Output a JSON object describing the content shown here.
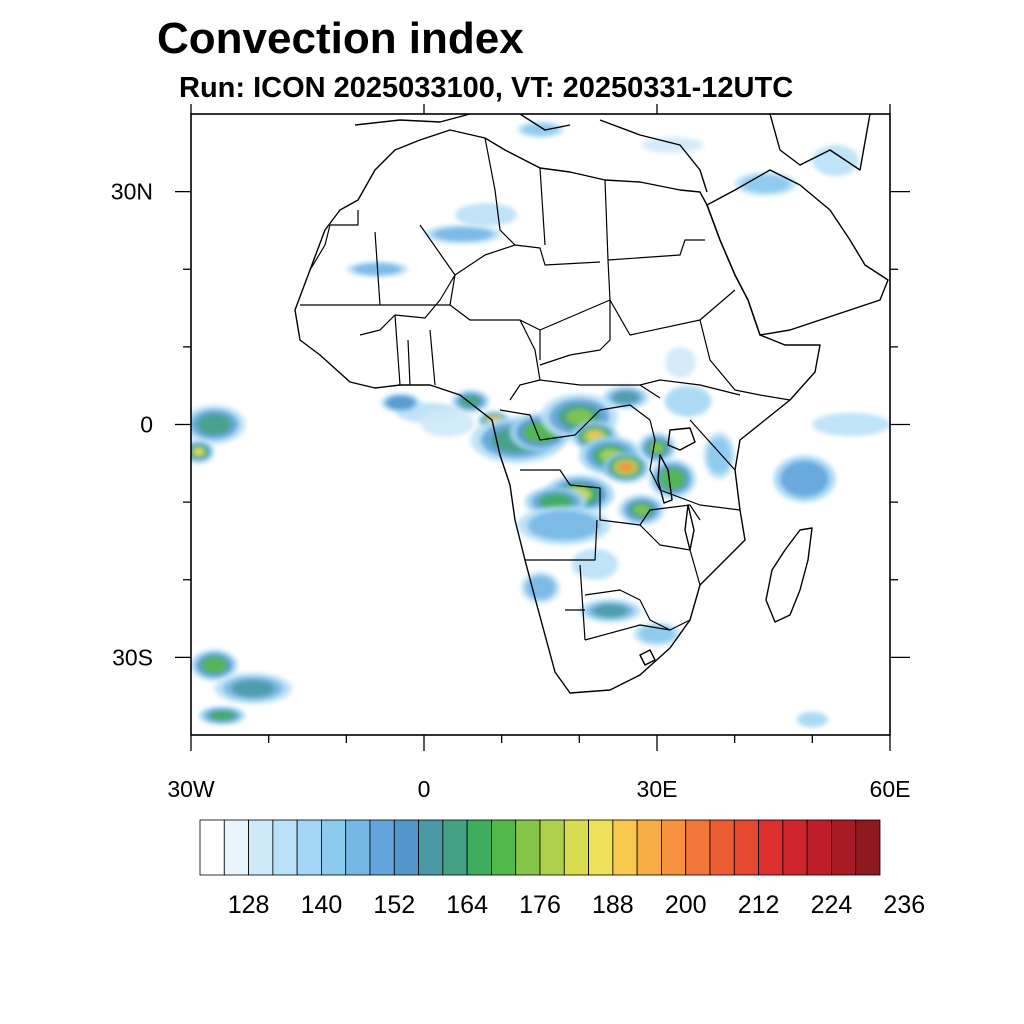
{
  "title": "Convection index",
  "subtitle": "Run: ICON 2025033100,  VT: 20250331-12UTC",
  "map": {
    "extent": {
      "lon": [
        -30,
        60
      ],
      "lat": [
        -40,
        40
      ]
    },
    "lon_ticks": [
      {
        "lon": -30,
        "label": "30W"
      },
      {
        "lon": 0,
        "label": "0"
      },
      {
        "lon": 30,
        "label": "30E"
      },
      {
        "lon": 60,
        "label": "60E"
      }
    ],
    "lat_ticks": [
      {
        "lat": 30,
        "label": "30N"
      },
      {
        "lat": 0,
        "label": "0"
      },
      {
        "lat": -30,
        "label": "30S"
      }
    ],
    "minor_lon": [
      -20,
      -10,
      10,
      20,
      40,
      50
    ],
    "minor_lat": [
      20,
      10,
      -10,
      -20
    ]
  },
  "colorbar": {
    "colors": [
      "#ffffff",
      "#e8f4fc",
      "#cfe9f8",
      "#b8e0f6",
      "#a3d6f4",
      "#8ccaee",
      "#77b7e6",
      "#63a4dc",
      "#5296cc",
      "#4a9aa5",
      "#46a184",
      "#3fac5e",
      "#52b84a",
      "#85c64a",
      "#aed14c",
      "#d8dc50",
      "#f0e15a",
      "#f8c84f",
      "#f9ad46",
      "#f79240",
      "#f3763a",
      "#ed5d33",
      "#e5472f",
      "#dc302e",
      "#cf252c",
      "#be1e29",
      "#a81b24",
      "#8f1a1e"
    ],
    "labels": [
      "128",
      "140",
      "152",
      "164",
      "176",
      "188",
      "200",
      "212",
      "224",
      "236"
    ],
    "label_bounds": [
      128,
      140,
      152,
      164,
      176,
      188,
      200,
      212,
      224,
      236
    ]
  },
  "convection_blobs": [
    {
      "lon": 0.5,
      "lat": 1.5,
      "rx": 4,
      "ry": 1.3,
      "level": 3
    },
    {
      "lon": -3,
      "lat": 2.8,
      "rx": 2.5,
      "ry": 1.2,
      "level": 8
    },
    {
      "lon": 3,
      "lat": 0.2,
      "rx": 3.5,
      "ry": 1.8,
      "level": 2
    },
    {
      "lon": 6,
      "lat": 3,
      "rx": 2.5,
      "ry": 1.5,
      "level": 10
    },
    {
      "lon": 9,
      "lat": 0.5,
      "rx": 2,
      "ry": 1.2,
      "level": 18
    },
    {
      "lon": 12,
      "lat": -2,
      "rx": 6,
      "ry": 3,
      "level": 10
    },
    {
      "lon": 15,
      "lat": -1,
      "rx": 4,
      "ry": 2.5,
      "level": 12
    },
    {
      "lon": 20,
      "lat": 1,
      "rx": 5,
      "ry": 3,
      "level": 13
    },
    {
      "lon": 22,
      "lat": -1.5,
      "rx": 3,
      "ry": 2,
      "level": 17
    },
    {
      "lon": 24,
      "lat": -4,
      "rx": 4,
      "ry": 2.5,
      "level": 14
    },
    {
      "lon": 26,
      "lat": -5.5,
      "rx": 3,
      "ry": 2,
      "level": 19
    },
    {
      "lon": 20,
      "lat": -9,
      "rx": 4.5,
      "ry": 2.5,
      "level": 15
    },
    {
      "lon": 17,
      "lat": -10,
      "rx": 4,
      "ry": 2,
      "level": 11
    },
    {
      "lon": 30,
      "lat": -3,
      "rx": 2.5,
      "ry": 2,
      "level": 13
    },
    {
      "lon": 32,
      "lat": -7,
      "rx": 3,
      "ry": 2.5,
      "level": 12
    },
    {
      "lon": 28,
      "lat": -11,
      "rx": 3,
      "ry": 2,
      "level": 13
    },
    {
      "lon": 18,
      "lat": -13,
      "rx": 6,
      "ry": 2.5,
      "level": 6
    },
    {
      "lon": 26,
      "lat": 3.5,
      "rx": 3,
      "ry": 1.5,
      "level": 9
    },
    {
      "lon": 34,
      "lat": 3,
      "rx": 3,
      "ry": 2,
      "level": 4
    },
    {
      "lon": 38,
      "lat": -4,
      "rx": 2,
      "ry": 3,
      "level": 5
    },
    {
      "lon": 15,
      "lat": -21,
      "rx": 2.5,
      "ry": 2,
      "level": 6
    },
    {
      "lon": 24,
      "lat": -24,
      "rx": 4,
      "ry": 1.5,
      "level": 9
    },
    {
      "lon": 30,
      "lat": -27,
      "rx": 3,
      "ry": 1.5,
      "level": 5
    },
    {
      "lon": 22,
      "lat": -18,
      "rx": 3,
      "ry": 2,
      "level": 3
    },
    {
      "lon": -27,
      "lat": 0,
      "rx": 4,
      "ry": 2.5,
      "level": 10
    },
    {
      "lon": -29,
      "lat": -3.5,
      "rx": 2,
      "ry": 1.5,
      "level": 16
    },
    {
      "lon": -27,
      "lat": -31,
      "rx": 3,
      "ry": 2,
      "level": 12
    },
    {
      "lon": -22,
      "lat": -34,
      "rx": 5,
      "ry": 2,
      "level": 9
    },
    {
      "lon": -26,
      "lat": -37.5,
      "rx": 3,
      "ry": 1.2,
      "level": 11
    },
    {
      "lon": 49,
      "lat": -7,
      "rx": 4,
      "ry": 3,
      "level": 7
    },
    {
      "lon": 55,
      "lat": 0,
      "rx": 5,
      "ry": 1.5,
      "level": 3
    },
    {
      "lon": 5,
      "lat": 24.5,
      "rx": 5,
      "ry": 1.2,
      "level": 6
    },
    {
      "lon": -6,
      "lat": 20,
      "rx": 4,
      "ry": 1,
      "level": 6
    },
    {
      "lon": 8,
      "lat": 27,
      "rx": 4,
      "ry": 1.5,
      "level": 3
    },
    {
      "lon": 44,
      "lat": 31,
      "rx": 4,
      "ry": 1.5,
      "level": 5
    },
    {
      "lon": 53,
      "lat": 34,
      "rx": 3,
      "ry": 2,
      "level": 3
    },
    {
      "lon": 32,
      "lat": 36,
      "rx": 4,
      "ry": 1,
      "level": 2
    },
    {
      "lon": 15,
      "lat": 38,
      "rx": 3,
      "ry": 1,
      "level": 5
    },
    {
      "lon": 50,
      "lat": -38,
      "rx": 2,
      "ry": 1,
      "level": 4
    },
    {
      "lon": 33,
      "lat": 8,
      "rx": 2,
      "ry": 2,
      "level": 2
    }
  ]
}
